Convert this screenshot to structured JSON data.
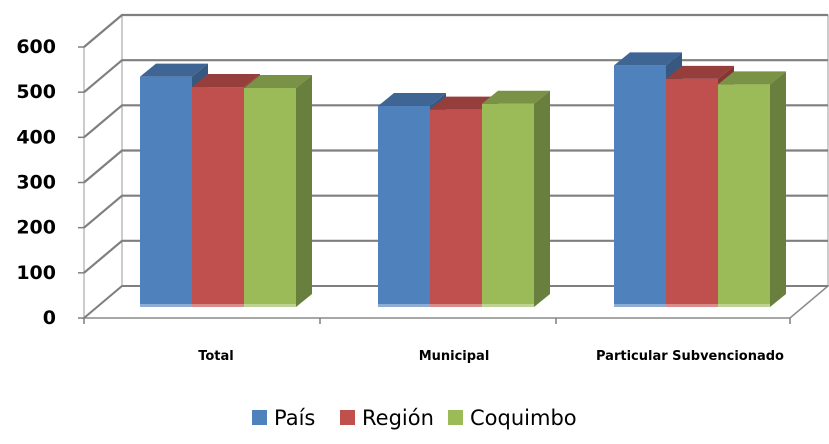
{
  "chart_data": {
    "type": "bar",
    "categories": [
      "Total",
      "Municipal",
      "Particular Subvencionado"
    ],
    "series": [
      {
        "name": "País",
        "values": [
          510,
          445,
          535
        ],
        "color": "#4F81BD"
      },
      {
        "name": "Región",
        "values": [
          487,
          437,
          505
        ],
        "color": "#C0504D"
      },
      {
        "name": "Coquimbo",
        "values": [
          485,
          450,
          493
        ],
        "color": "#9BBB59"
      }
    ],
    "ylim": [
      0,
      600
    ],
    "yticks": [
      0,
      100,
      200,
      300,
      400,
      500,
      600
    ],
    "grid": true,
    "three_d": true,
    "legend_position": "bottom",
    "title": "",
    "xlabel": "",
    "ylabel": ""
  }
}
